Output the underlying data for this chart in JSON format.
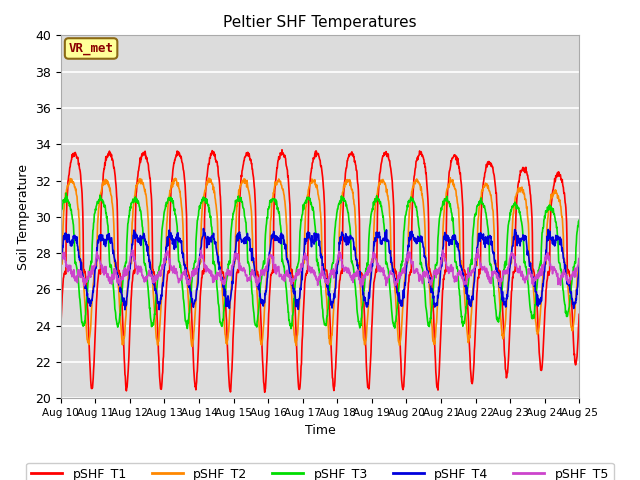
{
  "title": "Peltier SHF Temperatures",
  "ylabel": "Soil Temperature",
  "xlabel": "Time",
  "ylim": [
    20,
    40
  ],
  "bg_color": "#dcdcdc",
  "annotation_text": "VR_met",
  "annotation_color": "#8B0000",
  "annotation_bg": "#ffff99",
  "annotation_border": "#8B6914",
  "series": {
    "pSHF_T1": {
      "color": "#ff0000",
      "lw": 1.2
    },
    "pSHF_T2": {
      "color": "#ff8800",
      "lw": 1.2
    },
    "pSHF_T3": {
      "color": "#00dd00",
      "lw": 1.2
    },
    "pSHF_T4": {
      "color": "#0000dd",
      "lw": 1.2
    },
    "pSHF_T5": {
      "color": "#cc44cc",
      "lw": 1.2
    }
  },
  "xtick_labels": [
    "Aug 10",
    "Aug 11",
    "Aug 12",
    "Aug 13",
    "Aug 14",
    "Aug 15",
    "Aug 16",
    "Aug 17",
    "Aug 18",
    "Aug 19",
    "Aug 20",
    "Aug 21",
    "Aug 22",
    "Aug 23",
    "Aug 24",
    "Aug 25"
  ],
  "ytick_labels": [
    20,
    22,
    24,
    26,
    28,
    30,
    32,
    34,
    36,
    38,
    40
  ]
}
